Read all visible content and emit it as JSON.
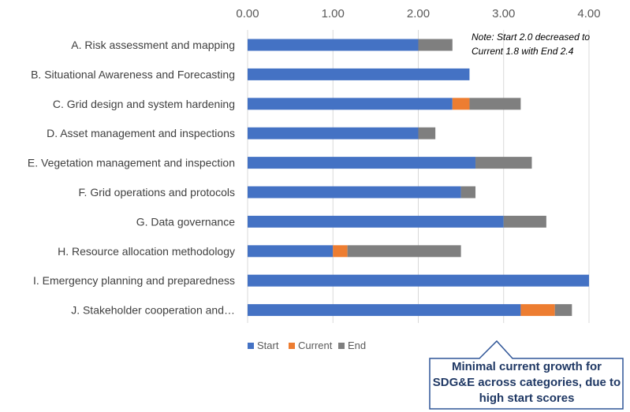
{
  "chart_data": {
    "type": "bar",
    "orientation": "horizontal",
    "stacked": true,
    "categories": [
      "A. Risk assessment and mapping",
      "B. Situational Awareness and Forecasting",
      "C. Grid design and system hardening",
      "D. Asset management and inspections",
      "E. Vegetation management and inspection",
      "F. Grid operations and protocols",
      "G. Data governance",
      "H. Resource allocation methodology",
      "I. Emergency planning and preparedness",
      "J. Stakeholder cooperation and…"
    ],
    "series": [
      {
        "name": "Start",
        "values": [
          2.0,
          2.6,
          2.4,
          2.0,
          2.67,
          2.5,
          3.0,
          1.0,
          4.0,
          3.2
        ],
        "color": "#4472c4"
      },
      {
        "name": "Current",
        "values": [
          0,
          0,
          0.2,
          0,
          0,
          0,
          0,
          0.17,
          0,
          0.4
        ],
        "color": "#ed7d31"
      },
      {
        "name": "End",
        "values": [
          0.4,
          0,
          0.6,
          0.2,
          0.66,
          0.17,
          0.5,
          1.33,
          0,
          0.2
        ],
        "color": "#7f7f7f"
      }
    ],
    "xlim": [
      0,
      4
    ],
    "x_ticks": [
      "0.00",
      "1.00",
      "2.00",
      "3.00",
      "4.00"
    ],
    "x_axis_position": "top",
    "gridlines": true,
    "legend_position": "bottom"
  },
  "annotations": {
    "note_line1": "Note: Start 2.0 decreased to",
    "note_line2": "Current 1.8 with End 2.4",
    "callout": "Minimal current growth for SDG&E across categories, due to high start scores"
  },
  "colors": {
    "callout_border": "#2f5597",
    "callout_text": "#1f3864",
    "grid": "#d9d9d9"
  }
}
